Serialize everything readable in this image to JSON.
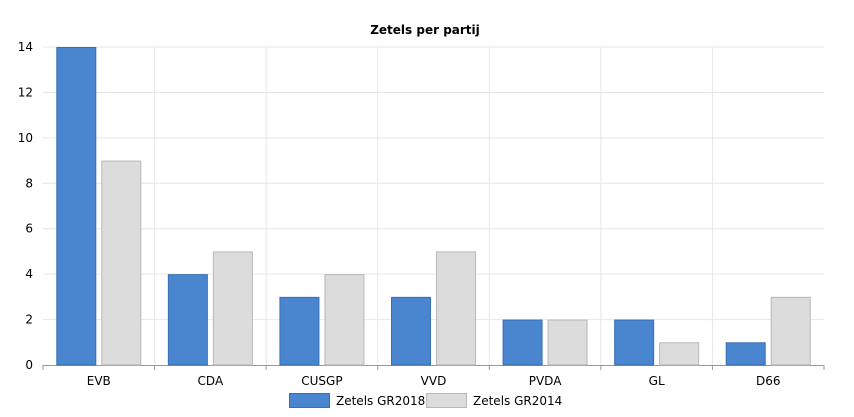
{
  "chart_data": {
    "type": "bar",
    "title": "Zetels per partij",
    "xlabel": "",
    "ylabel": "",
    "categories": [
      "EVB",
      "CDA",
      "CUSGP",
      "VVD",
      "PVDA",
      "GL",
      "D66"
    ],
    "series": [
      {
        "name": "Zetels GR2018",
        "values": [
          14,
          4,
          3,
          3,
          2,
          2,
          1
        ],
        "color": "#4a86d0",
        "stroke": "#3a6fb0"
      },
      {
        "name": "Zetels GR2014",
        "values": [
          9,
          5,
          4,
          5,
          2,
          1,
          3
        ],
        "color": "#dcdcdc",
        "stroke": "#b8b8b8"
      }
    ],
    "ylim": [
      0,
      14
    ],
    "yticks": [
      0,
      2,
      4,
      6,
      8,
      10,
      12,
      14
    ],
    "grid": true,
    "legend": "bottom-center"
  }
}
